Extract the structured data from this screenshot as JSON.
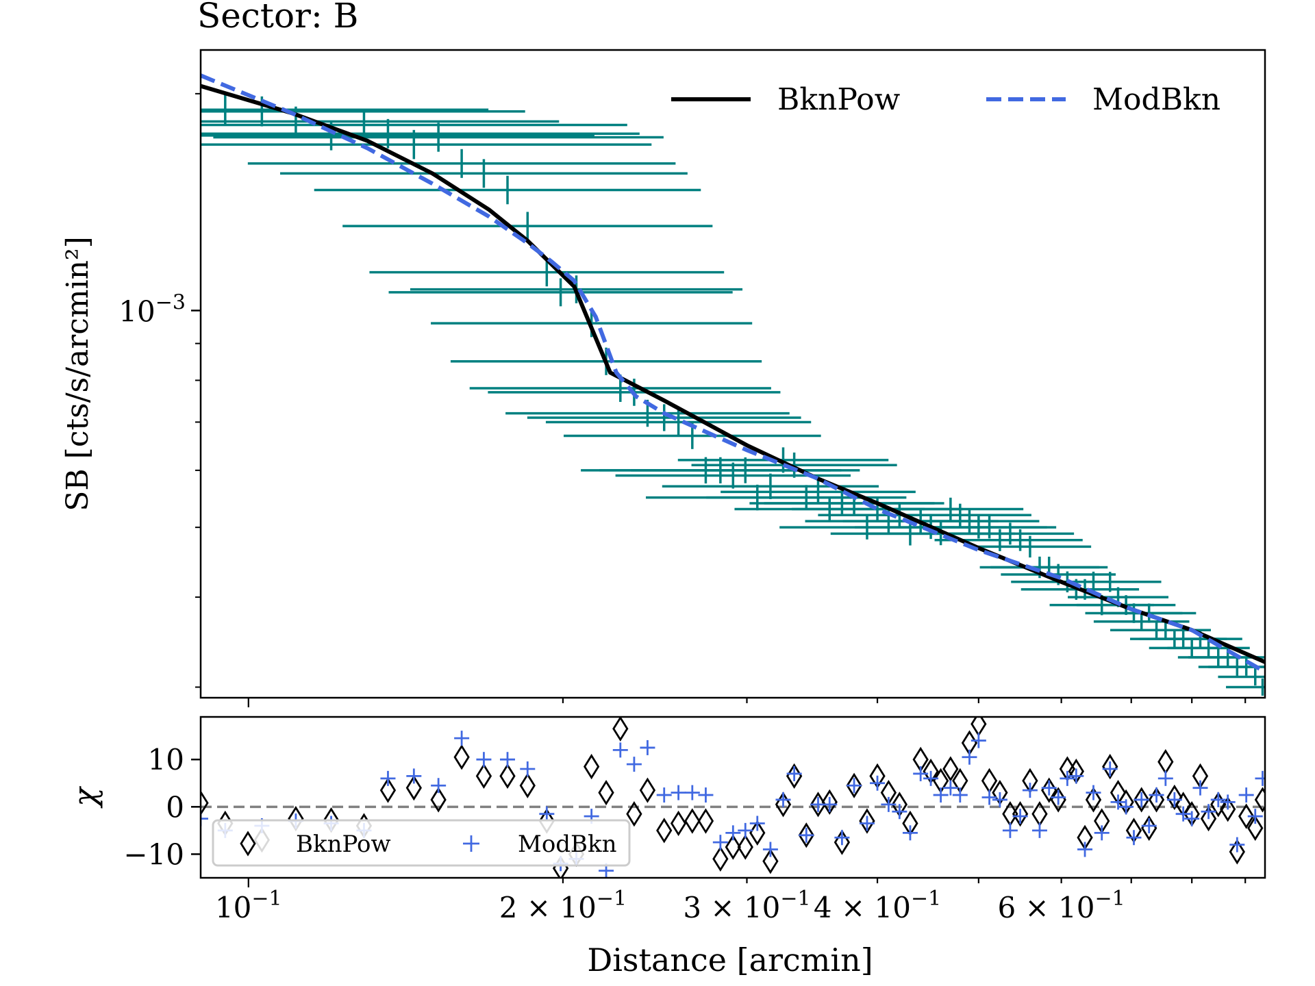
{
  "title": "Sector:  B",
  "chart_data": [
    {
      "type": "line",
      "panel": "profile",
      "xlabel": "Distance [arcmin]",
      "ylabel": "SB [cts/s/arcmin²]",
      "xscale": "log",
      "yscale": "log",
      "xlim": [
        0.09,
        0.94
      ],
      "ylim": [
        0.00029,
        0.0023
      ],
      "xticks": [
        {
          "value": 0.1,
          "base": "10",
          "exp": "−1",
          "mult": ""
        },
        {
          "value": 0.2,
          "base": "10",
          "exp": "−1",
          "mult": "2 × "
        },
        {
          "value": 0.3,
          "base": "10",
          "exp": "−1",
          "mult": "3 × "
        },
        {
          "value": 0.4,
          "base": "10",
          "exp": "−1",
          "mult": "4 × "
        },
        {
          "value": 0.6,
          "base": "10",
          "exp": "−1",
          "mult": "6 × "
        }
      ],
      "yticks": [
        {
          "value": 0.001,
          "base": "10",
          "exp": "−3"
        }
      ],
      "legend": {
        "location": "top-right",
        "entries": [
          "BknPow",
          "ModBkn"
        ]
      },
      "data_color": "#008080",
      "series": [
        {
          "name": "BknPow",
          "style": "solid",
          "color": "#000000",
          "x": [
            0.09,
            0.11,
            0.13,
            0.15,
            0.17,
            0.185,
            0.195,
            0.205,
            0.222,
            0.25,
            0.3,
            0.35,
            0.4,
            0.5,
            0.6,
            0.7,
            0.8,
            0.94
          ],
          "y": [
            0.00205,
            0.00188,
            0.00172,
            0.00155,
            0.00138,
            0.00125,
            0.00116,
            0.00108,
            0.00082,
            0.00075,
            0.00065,
            0.000585,
            0.00054,
            0.000468,
            0.00042,
            0.000385,
            0.00036,
            0.000325
          ]
        },
        {
          "name": "ModBkn",
          "style": "dashed",
          "color": "#4169e1",
          "x": [
            0.09,
            0.11,
            0.13,
            0.15,
            0.17,
            0.185,
            0.195,
            0.205,
            0.215,
            0.225,
            0.235,
            0.25,
            0.3,
            0.35,
            0.4,
            0.5,
            0.6,
            0.7,
            0.8,
            0.94
          ],
          "y": [
            0.00212,
            0.00188,
            0.00168,
            0.0015,
            0.00135,
            0.00124,
            0.00117,
            0.0011,
            0.00098,
            0.00082,
            0.00076,
            0.00072,
            0.00064,
            0.000585,
            0.00053,
            0.000465,
            0.000425,
            0.000385,
            0.00036,
            0.000315
          ]
        }
      ],
      "data_points": {
        "x": [
          0.095,
          0.103,
          0.111,
          0.12,
          0.129,
          0.136,
          0.144,
          0.152,
          0.16,
          0.168,
          0.177,
          0.185,
          0.193,
          0.199,
          0.206,
          0.213,
          0.22,
          0.227,
          0.234,
          0.241,
          0.25,
          0.258,
          0.266,
          0.274,
          0.283,
          0.291,
          0.299,
          0.307,
          0.316,
          0.325,
          0.333,
          0.342,
          0.351,
          0.36,
          0.37,
          0.38,
          0.391,
          0.4,
          0.41,
          0.42,
          0.43,
          0.44,
          0.45,
          0.46,
          0.47,
          0.48,
          0.49,
          0.5,
          0.512,
          0.524,
          0.536,
          0.548,
          0.56,
          0.572,
          0.584,
          0.596,
          0.608,
          0.62,
          0.632,
          0.644,
          0.656,
          0.668,
          0.68,
          0.692,
          0.704,
          0.716,
          0.728,
          0.74,
          0.755,
          0.77,
          0.785,
          0.8,
          0.815,
          0.83,
          0.848,
          0.866,
          0.884,
          0.902,
          0.92,
          0.935
        ],
        "y": [
          0.0019,
          0.00189,
          0.00183,
          0.00175,
          0.00181,
          0.00176,
          0.0017,
          0.00174,
          0.0016,
          0.00155,
          0.00147,
          0.00131,
          0.00113,
          0.00106,
          0.00107,
          0.00096,
          0.00085,
          0.00078,
          0.00077,
          0.00072,
          0.00071,
          0.0007,
          0.00067,
          0.0006,
          0.0006,
          0.00059,
          0.0006,
          0.00055,
          0.00057,
          0.00062,
          0.00061,
          0.00055,
          0.00056,
          0.00053,
          0.00054,
          0.00054,
          0.0005,
          0.00053,
          0.00051,
          0.00052,
          0.00049,
          0.00051,
          0.0005,
          0.00049,
          0.00053,
          0.00052,
          0.00051,
          0.0005,
          0.0005,
          0.00048,
          0.00049,
          0.00048,
          0.00047,
          0.00044,
          0.00044,
          0.00043,
          0.00042,
          0.00041,
          0.00041,
          0.00042,
          0.00039,
          0.00042,
          0.0004,
          0.00039,
          0.00038,
          0.00037,
          0.00038,
          0.00036,
          0.00036,
          0.00035,
          0.00035,
          0.00034,
          0.00035,
          0.00034,
          0.00033,
          0.00033,
          0.00032,
          0.00032,
          0.00031,
          0.0003
        ]
      }
    },
    {
      "type": "scatter",
      "panel": "residuals",
      "ylabel": "χ",
      "xscale": "log",
      "xlim": [
        0.09,
        0.94
      ],
      "ylim": [
        -15,
        19
      ],
      "yticks": [
        {
          "value": 10,
          "label": "10"
        },
        {
          "value": 0,
          "label": "0"
        },
        {
          "value": -10,
          "label": "−10"
        }
      ],
      "zero_line": 0,
      "legend": {
        "location": "lower-left",
        "entries": [
          "BknPow",
          "ModBkn"
        ]
      },
      "series": [
        {
          "name": "BknPow",
          "marker": "diamond",
          "color": "#000000",
          "x": [
            0.09,
            0.095,
            0.103,
            0.111,
            0.12,
            0.129,
            0.136,
            0.144,
            0.152,
            0.16,
            0.168,
            0.177,
            0.185,
            0.193,
            0.199,
            0.206,
            0.213,
            0.22,
            0.227,
            0.234,
            0.241,
            0.25,
            0.258,
            0.266,
            0.274,
            0.283,
            0.291,
            0.299,
            0.307,
            0.316,
            0.325,
            0.333,
            0.342,
            0.351,
            0.36,
            0.37,
            0.38,
            0.391,
            0.4,
            0.41,
            0.42,
            0.43,
            0.44,
            0.45,
            0.46,
            0.47,
            0.48,
            0.49,
            0.5,
            0.512,
            0.524,
            0.536,
            0.548,
            0.56,
            0.572,
            0.584,
            0.596,
            0.608,
            0.62,
            0.632,
            0.644,
            0.656,
            0.668,
            0.68,
            0.692,
            0.704,
            0.716,
            0.728,
            0.74,
            0.755,
            0.77,
            0.785,
            0.8,
            0.815,
            0.83,
            0.848,
            0.866,
            0.884,
            0.902,
            0.92,
            0.935
          ],
          "y": [
            0.8,
            -3.5,
            -7,
            -2.5,
            -2.8,
            -4,
            3.5,
            4,
            1.5,
            10.5,
            6.5,
            6.5,
            4.5,
            -3,
            -13,
            -10,
            8.5,
            3,
            16.5,
            -1.5,
            3.5,
            -5,
            -3.5,
            -3,
            -3,
            -11,
            -8.5,
            -8.5,
            -5.5,
            -11.5,
            0.5,
            6.5,
            -6,
            0.5,
            1,
            -7.5,
            4.5,
            -3,
            6.5,
            3,
            0.5,
            -3.5,
            10,
            7.5,
            5.5,
            8,
            5.5,
            13.5,
            17.5,
            5.5,
            3,
            -1.5,
            -1.5,
            5.5,
            -1.5,
            3.5,
            1.5,
            8,
            7.5,
            -6.5,
            1.5,
            -3,
            8.5,
            3,
            1,
            -5,
            1.5,
            -4.5,
            1.5,
            9.5,
            2,
            0.5,
            -1.5,
            6.5,
            -2.5,
            0.5,
            -0.5,
            -9.5,
            -2,
            -4.5,
            1.5
          ]
        },
        {
          "name": "ModBkn",
          "marker": "plus",
          "color": "#4169e1",
          "x": [
            0.09,
            0.095,
            0.103,
            0.111,
            0.12,
            0.129,
            0.136,
            0.144,
            0.152,
            0.16,
            0.168,
            0.177,
            0.185,
            0.193,
            0.199,
            0.206,
            0.213,
            0.22,
            0.227,
            0.234,
            0.241,
            0.25,
            0.258,
            0.266,
            0.274,
            0.283,
            0.291,
            0.299,
            0.307,
            0.316,
            0.325,
            0.333,
            0.342,
            0.351,
            0.36,
            0.37,
            0.38,
            0.391,
            0.4,
            0.41,
            0.42,
            0.43,
            0.44,
            0.45,
            0.46,
            0.47,
            0.48,
            0.49,
            0.5,
            0.512,
            0.524,
            0.536,
            0.548,
            0.56,
            0.572,
            0.584,
            0.596,
            0.608,
            0.62,
            0.632,
            0.644,
            0.656,
            0.668,
            0.68,
            0.692,
            0.704,
            0.716,
            0.728,
            0.74,
            0.755,
            0.77,
            0.785,
            0.8,
            0.815,
            0.83,
            0.848,
            0.866,
            0.884,
            0.902,
            0.92,
            0.935
          ],
          "y": [
            -2.5,
            -5,
            -4,
            -3,
            -3.5,
            -5,
            6,
            6.5,
            4.5,
            14.5,
            10,
            10,
            8,
            -1.5,
            -12,
            -11,
            -2,
            -13.5,
            12,
            9,
            12.5,
            2.5,
            3,
            3,
            2.5,
            -7.5,
            -5.5,
            -5,
            -3.5,
            -9,
            1.5,
            7,
            -6,
            0.5,
            0.5,
            -6.5,
            4.5,
            -3.5,
            5,
            0.5,
            -1,
            -5.5,
            7,
            6,
            2.5,
            4,
            2.5,
            10.5,
            14,
            2,
            1.5,
            -5,
            -2,
            3.5,
            -5,
            4,
            2,
            6,
            6.5,
            -9,
            3,
            -5.5,
            8,
            1,
            0,
            -6.5,
            1.5,
            -4,
            2.5,
            6,
            1.5,
            -1.5,
            -2.5,
            4,
            -1,
            1.5,
            1,
            -8,
            2.5,
            -2,
            6
          ]
        }
      ]
    }
  ]
}
